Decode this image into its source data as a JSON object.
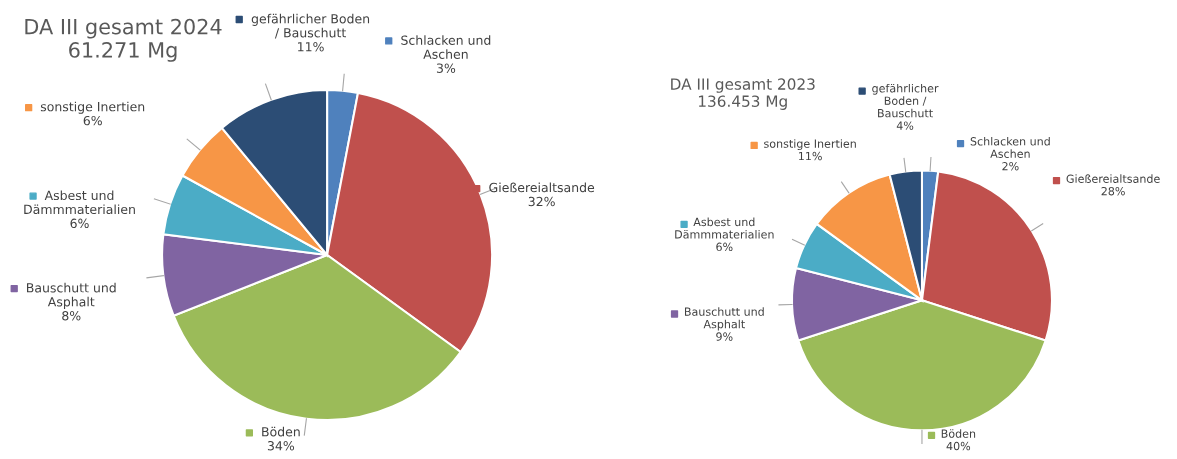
{
  "chart_data": [
    {
      "type": "pie",
      "title": "DA III gesamt 2024",
      "subtitle": "61.271 Mg",
      "categories": [
        "Schlacken und\nAschen",
        "Gießereialtsande",
        "Böden",
        "Bauschutt und\nAsphalt",
        "Asbest und\nDämmmaterialien",
        "sonstige Inertien",
        "gefährlicher Boden\n/ Bauschutt"
      ],
      "legend": "left",
      "values": [
        3,
        32,
        34,
        8,
        6,
        6,
        11
      ],
      "value_labels": [
        "3%",
        "32%",
        "34%",
        "8%",
        "6%",
        "6%",
        "11%"
      ],
      "colors": [
        "#4f81bd",
        "#c0504d",
        "#9bbb59",
        "#8064a2",
        "#4bacc6",
        "#f79646",
        "#2c4d75"
      ]
    },
    {
      "type": "pie",
      "title": "DA III gesamt 2023",
      "subtitle": "136.453 Mg",
      "categories": [
        "Schlacken und\nAschen",
        "Gießereialtsande",
        "Böden",
        "Bauschutt und\nAsphalt",
        "Asbest und\nDämmmaterialien",
        "sonstige Inertien",
        "gefährlicher\nBoden /\nBauschutt"
      ],
      "legend": "left",
      "values": [
        2,
        28,
        40,
        9,
        6,
        11,
        4
      ],
      "value_labels": [
        "2%",
        "28%",
        "40%",
        "9%",
        "6%",
        "11%",
        "4%"
      ],
      "colors": [
        "#4f81bd",
        "#c0504d",
        "#9bbb59",
        "#8064a2",
        "#4bacc6",
        "#f79646",
        "#2c4d75"
      ]
    }
  ]
}
